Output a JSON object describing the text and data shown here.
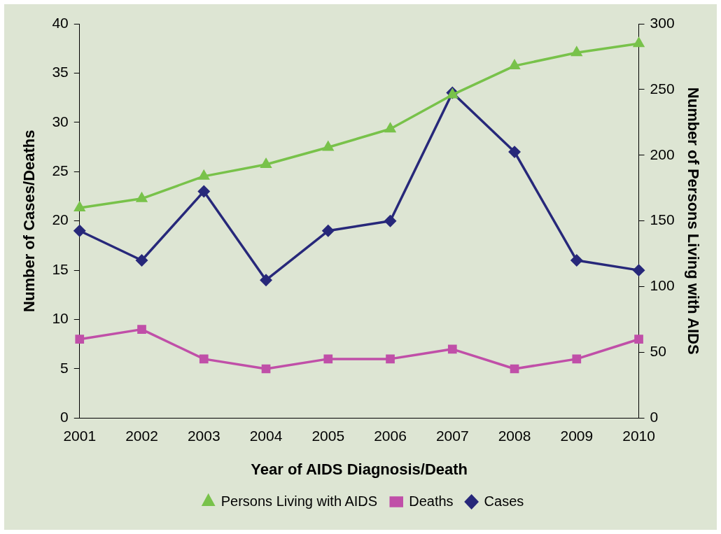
{
  "chart_data": {
    "type": "line",
    "xlabel": "Year of AIDS Diagnosis/Death",
    "ylabel": "Number of Cases/Deaths",
    "y2label": "Number of Persons Living with AIDS",
    "categories": [
      "2001",
      "2002",
      "2003",
      "2004",
      "2005",
      "2006",
      "2007",
      "2008",
      "2009",
      "2010"
    ],
    "series": [
      {
        "name": "Cases",
        "color": "#27287a",
        "marker": "diamond",
        "values": [
          19,
          16,
          23,
          14,
          19,
          20,
          33,
          27,
          16,
          15
        ]
      },
      {
        "name": "Deaths",
        "color": "#c04fa8",
        "marker": "square",
        "values": [
          8,
          9,
          6,
          5,
          6,
          6,
          7,
          5,
          6,
          8
        ]
      },
      {
        "name": "Persons Living with AIDS",
        "color": "#78c24a",
        "marker": "triangle",
        "axis": "y2",
        "values": [
          160,
          167,
          184,
          193,
          206,
          220,
          246,
          268,
          278,
          285
        ]
      }
    ],
    "ylim": [
      0,
      40
    ],
    "yticks": [
      0,
      5,
      10,
      15,
      20,
      25,
      30,
      35,
      40
    ],
    "y2lim": [
      0,
      300
    ],
    "y2ticks": [
      0,
      50,
      100,
      150,
      200,
      250,
      300
    ],
    "grid": false,
    "legend": "bottom",
    "line_style": "solid"
  }
}
